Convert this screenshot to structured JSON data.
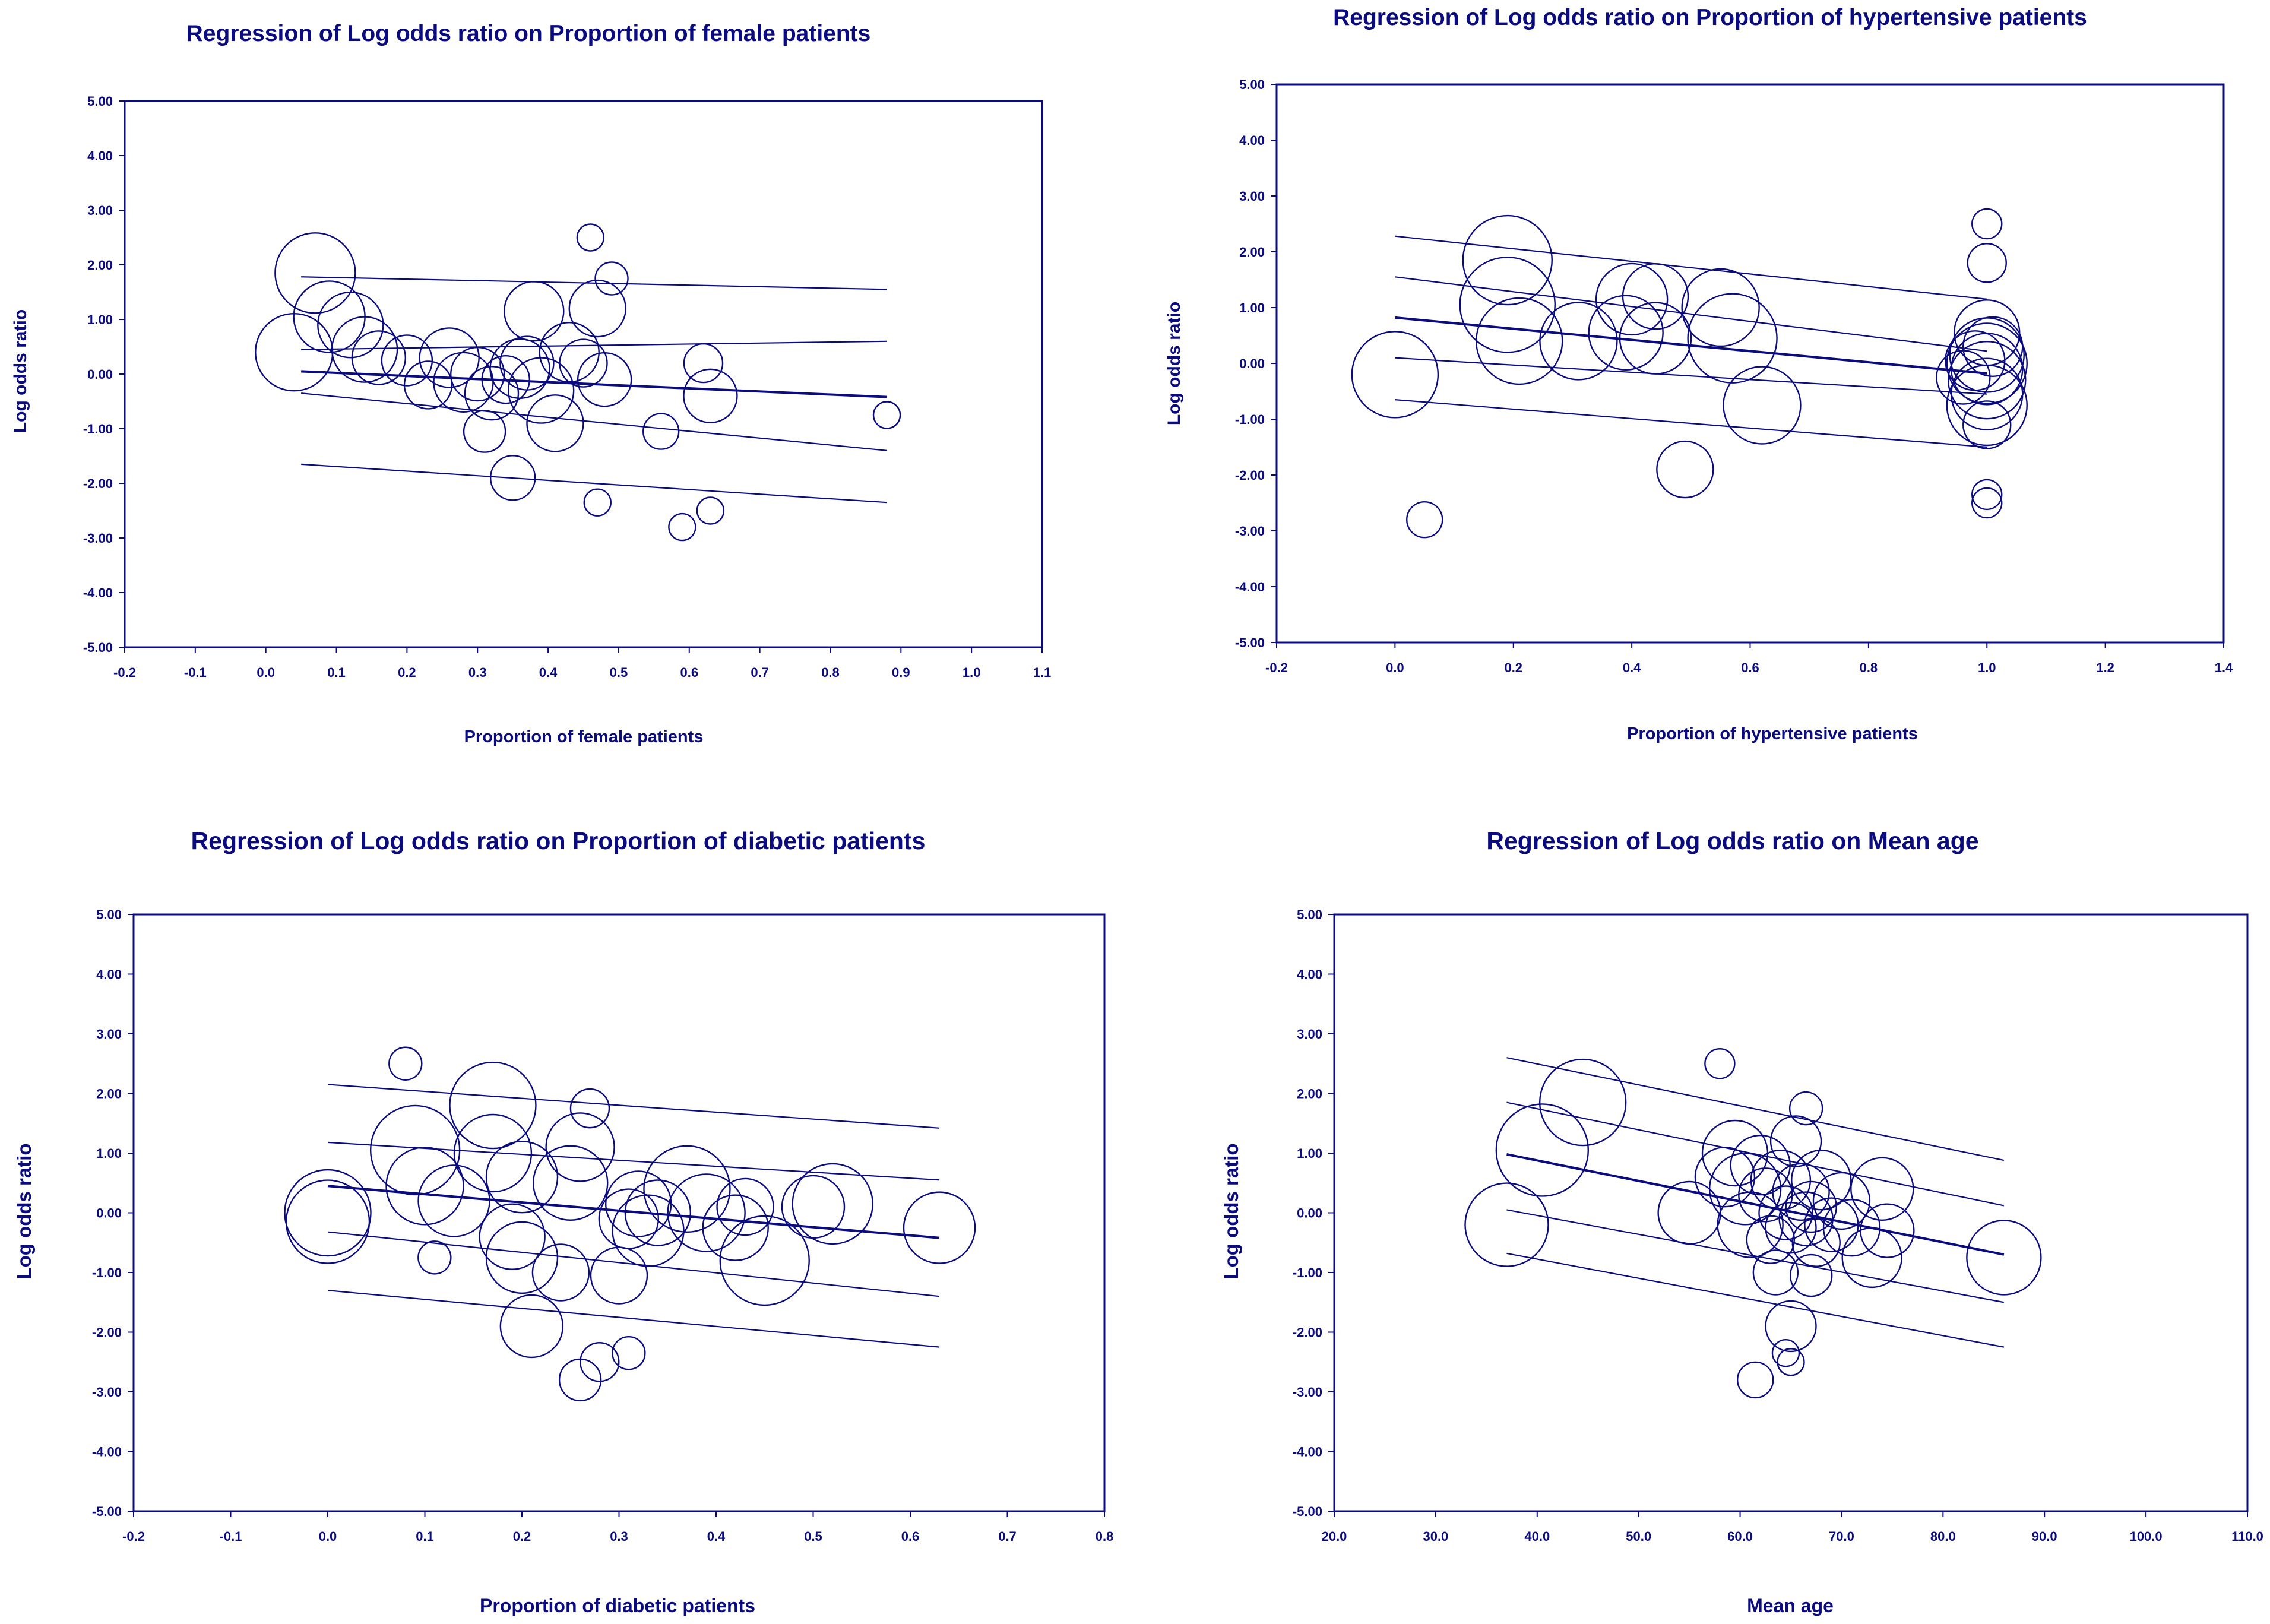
{
  "colors": {
    "ink": "#0b0b80",
    "background": "#ffffff"
  },
  "chart_data": [
    {
      "type": "scatter",
      "title": "Regression of Log odds ratio on Proportion of female patients",
      "xlabel": "Proportion of female patients",
      "ylabel": "Log odds ratio",
      "xlim": [
        -0.2,
        1.1
      ],
      "ylim": [
        -5.0,
        5.0
      ],
      "xticks": [
        -0.2,
        -0.1,
        0.0,
        0.1,
        0.2,
        0.3,
        0.4,
        0.5,
        0.6,
        0.7,
        0.8,
        0.9,
        1.0,
        1.1
      ],
      "xtick_labels": [
        "-0.2",
        "-0.1",
        "0.0",
        "0.1",
        "0.2",
        "0.3",
        "0.4",
        "0.5",
        "0.6",
        "0.7",
        "0.8",
        "0.9",
        "1.0",
        "1.1"
      ],
      "yticks": [
        5,
        4,
        3,
        2,
        1,
        0,
        -1,
        -2,
        -3,
        -4,
        -5
      ],
      "ytick_labels": [
        "5.00",
        "4.00",
        "3.00",
        "2.00",
        "1.00",
        "0.00",
        "-1.00",
        "-2.00",
        "-3.00",
        "-4.00",
        "-5.00"
      ],
      "points": [
        [
          0.07,
          1.85,
          1.35
        ],
        [
          0.04,
          0.4,
          1.3
        ],
        [
          0.09,
          1.05,
          1.2
        ],
        [
          0.12,
          0.9,
          1.1
        ],
        [
          0.14,
          0.45,
          1.1
        ],
        [
          0.16,
          0.3,
          0.9
        ],
        [
          0.2,
          0.25,
          0.85
        ],
        [
          0.23,
          -0.2,
          0.8
        ],
        [
          0.26,
          0.3,
          1.0
        ],
        [
          0.28,
          -0.15,
          1.0
        ],
        [
          0.3,
          0.0,
          0.9
        ],
        [
          0.32,
          -0.35,
          0.9
        ],
        [
          0.34,
          -0.1,
          0.8
        ],
        [
          0.31,
          -1.05,
          0.7
        ],
        [
          0.35,
          -1.9,
          0.75
        ],
        [
          0.36,
          0.1,
          1.0
        ],
        [
          0.37,
          0.2,
          0.9
        ],
        [
          0.38,
          1.15,
          1.0
        ],
        [
          0.39,
          -0.3,
          1.1
        ],
        [
          0.41,
          -0.9,
          0.95
        ],
        [
          0.43,
          0.4,
          1.0
        ],
        [
          0.47,
          1.2,
          0.95
        ],
        [
          0.45,
          0.2,
          0.8
        ],
        [
          0.48,
          -0.1,
          0.9
        ],
        [
          0.49,
          1.75,
          0.55
        ],
        [
          0.46,
          2.5,
          0.45
        ],
        [
          0.47,
          -2.35,
          0.45
        ],
        [
          0.56,
          -1.05,
          0.6
        ],
        [
          0.59,
          -2.8,
          0.45
        ],
        [
          0.63,
          -2.5,
          0.45
        ],
        [
          0.62,
          0.2,
          0.65
        ],
        [
          0.63,
          -0.4,
          0.9
        ],
        [
          0.88,
          -0.75,
          0.45
        ]
      ],
      "regression": {
        "x": [
          0.05,
          0.88
        ],
        "fit": [
          0.05,
          -0.42
        ],
        "ci_upper": [
          0.45,
          0.6
        ],
        "ci_lower": [
          -0.35,
          -1.4
        ],
        "pi_upper": [
          1.78,
          1.55
        ],
        "pi_lower": [
          -1.65,
          -2.35
        ]
      }
    },
    {
      "type": "scatter",
      "title": "Regression of Log odds ratio on Proportion of hypertensive patients",
      "xlabel": "Proportion of hypertensive patients",
      "ylabel": "Log odds ratio",
      "xlim": [
        -0.2,
        1.4
      ],
      "ylim": [
        -5.0,
        5.0
      ],
      "xticks": [
        -0.2,
        0.0,
        0.2,
        0.4,
        0.6,
        0.8,
        1.0,
        1.2,
        1.4
      ],
      "xtick_labels": [
        "-0.2",
        "0.0",
        "0.2",
        "0.4",
        "0.6",
        "0.8",
        "1.0",
        "1.2",
        "1.4"
      ],
      "yticks": [
        5,
        4,
        3,
        2,
        1,
        0,
        -1,
        -2,
        -3,
        -4,
        -5
      ],
      "ytick_labels": [
        "5.00",
        "4.00",
        "3.00",
        "2.00",
        "1.00",
        "0.00",
        "-1.00",
        "-2.00",
        "-3.00",
        "-4.00",
        "-5.00"
      ],
      "points": [
        [
          0.0,
          -0.2,
          1.45
        ],
        [
          0.05,
          -2.8,
          0.6
        ],
        [
          0.19,
          1.85,
          1.5
        ],
        [
          0.19,
          1.05,
          1.6
        ],
        [
          0.21,
          0.4,
          1.45
        ],
        [
          0.31,
          0.4,
          1.3
        ],
        [
          0.4,
          1.15,
          1.2
        ],
        [
          0.39,
          0.55,
          1.25
        ],
        [
          0.44,
          1.2,
          1.1
        ],
        [
          0.44,
          0.45,
          1.2
        ],
        [
          0.55,
          1.0,
          1.3
        ],
        [
          0.57,
          0.45,
          1.5
        ],
        [
          0.49,
          -1.9,
          0.95
        ],
        [
          0.62,
          -0.75,
          1.3
        ],
        [
          0.96,
          -0.25,
          0.9
        ],
        [
          0.98,
          0.05,
          1.0
        ],
        [
          1.0,
          0.55,
          1.1
        ],
        [
          1.0,
          0.15,
          1.25
        ],
        [
          1.0,
          0.0,
          1.35
        ],
        [
          1.0,
          -0.1,
          1.2
        ],
        [
          1.0,
          -0.3,
          1.3
        ],
        [
          1.0,
          -0.55,
          1.2
        ],
        [
          1.0,
          -0.75,
          1.35
        ],
        [
          1.01,
          0.3,
          1.0
        ],
        [
          1.0,
          -1.1,
          0.8
        ],
        [
          1.0,
          1.8,
          0.65
        ],
        [
          1.0,
          2.5,
          0.5
        ],
        [
          1.0,
          -2.35,
          0.5
        ],
        [
          1.0,
          -2.5,
          0.5
        ]
      ],
      "regression": {
        "x": [
          0.0,
          1.0
        ],
        "fit": [
          0.82,
          -0.18
        ],
        "ci_upper": [
          1.55,
          0.22
        ],
        "ci_lower": [
          0.1,
          -0.55
        ],
        "pi_upper": [
          2.28,
          1.15
        ],
        "pi_lower": [
          -0.65,
          -1.5
        ]
      }
    },
    {
      "type": "scatter",
      "title": "Regression of Log odds ratio on Proportion of diabetic patients",
      "xlabel": "Proportion of diabetic patients",
      "ylabel": "Log odds ratio",
      "xlim": [
        -0.2,
        0.8
      ],
      "ylim": [
        -5.0,
        5.0
      ],
      "xticks": [
        -0.2,
        -0.1,
        0.0,
        0.1,
        0.2,
        0.3,
        0.4,
        0.5,
        0.6,
        0.7,
        0.8
      ],
      "xtick_labels": [
        "-0.2",
        "-0.1",
        "0.0",
        "0.1",
        "0.2",
        "0.3",
        "0.4",
        "0.5",
        "0.6",
        "0.7",
        "0.8"
      ],
      "yticks": [
        5,
        4,
        3,
        2,
        1,
        0,
        -1,
        -2,
        -3,
        -4,
        -5
      ],
      "ytick_labels": [
        "5.00",
        "4.00",
        "3.00",
        "2.00",
        "1.00",
        "0.00",
        "-1.00",
        "-2.00",
        "-3.00",
        "-4.00",
        "-5.00"
      ],
      "points": [
        [
          0.0,
          0.0,
          1.45
        ],
        [
          0.0,
          -0.15,
          1.4
        ],
        [
          0.08,
          2.5,
          0.55
        ],
        [
          0.09,
          1.05,
          1.5
        ],
        [
          0.1,
          0.45,
          1.3
        ],
        [
          0.13,
          0.2,
          1.2
        ],
        [
          0.17,
          1.8,
          1.45
        ],
        [
          0.17,
          1.0,
          1.3
        ],
        [
          0.2,
          0.6,
          1.2
        ],
        [
          0.19,
          -0.4,
          1.1
        ],
        [
          0.2,
          -0.75,
          1.2
        ],
        [
          0.21,
          -1.9,
          1.05
        ],
        [
          0.11,
          -0.75,
          0.55
        ],
        [
          0.25,
          0.5,
          1.25
        ],
        [
          0.26,
          1.1,
          1.15
        ],
        [
          0.27,
          1.75,
          0.65
        ],
        [
          0.24,
          -1.0,
          0.95
        ],
        [
          0.26,
          -2.8,
          0.7
        ],
        [
          0.28,
          -2.5,
          0.65
        ],
        [
          0.31,
          -2.35,
          0.55
        ],
        [
          0.3,
          -1.05,
          0.95
        ],
        [
          0.31,
          -0.1,
          1.0
        ],
        [
          0.32,
          0.15,
          1.1
        ],
        [
          0.33,
          -0.3,
          1.2
        ],
        [
          0.34,
          0.0,
          1.1
        ],
        [
          0.37,
          0.4,
          1.45
        ],
        [
          0.39,
          0.0,
          1.3
        ],
        [
          0.42,
          -0.25,
          1.1
        ],
        [
          0.43,
          0.1,
          0.95
        ],
        [
          0.45,
          -0.8,
          1.5
        ],
        [
          0.5,
          0.1,
          1.05
        ],
        [
          0.52,
          0.15,
          1.35
        ],
        [
          0.63,
          -0.25,
          1.2
        ]
      ],
      "regression": {
        "x": [
          0.0,
          0.63
        ],
        "fit": [
          0.45,
          -0.42
        ],
        "ci_upper": [
          1.18,
          0.55
        ],
        "ci_lower": [
          -0.32,
          -1.4
        ],
        "pi_upper": [
          2.15,
          1.42
        ],
        "pi_lower": [
          -1.3,
          -2.25
        ]
      }
    },
    {
      "type": "scatter",
      "title": "Regression of Log odds ratio on Mean age",
      "xlabel": "Mean age",
      "ylabel": "Log odds ratio",
      "xlim": [
        20.0,
        110.0
      ],
      "ylim": [
        -5.0,
        5.0
      ],
      "xticks": [
        20,
        30,
        40,
        50,
        60,
        70,
        80,
        90,
        100,
        110
      ],
      "xtick_labels": [
        "20.0",
        "30.0",
        "40.0",
        "50.0",
        "60.0",
        "70.0",
        "80.0",
        "90.0",
        "100.0",
        "110.0"
      ],
      "yticks": [
        5,
        4,
        3,
        2,
        1,
        0,
        -1,
        -2,
        -3,
        -4,
        -5
      ],
      "ytick_labels": [
        "5.00",
        "4.00",
        "3.00",
        "2.00",
        "1.00",
        "0.00",
        "-1.00",
        "-2.00",
        "-3.00",
        "-4.00",
        "-5.00"
      ],
      "points": [
        [
          37.0,
          -0.2,
          1.4
        ],
        [
          40.5,
          1.05,
          1.55
        ],
        [
          44.5,
          1.85,
          1.45
        ],
        [
          55.0,
          0.0,
          1.05
        ],
        [
          58.0,
          2.5,
          0.5
        ],
        [
          58.5,
          0.6,
          1.0
        ],
        [
          59.5,
          1.0,
          1.1
        ],
        [
          60.5,
          0.4,
          1.2
        ],
        [
          61.0,
          -0.2,
          1.1
        ],
        [
          62.0,
          0.8,
          1.0
        ],
        [
          62.5,
          0.3,
          0.9
        ],
        [
          63.0,
          -0.45,
          0.8
        ],
        [
          63.5,
          -1.0,
          0.75
        ],
        [
          64.0,
          0.55,
          1.0
        ],
        [
          64.5,
          0.0,
          0.9
        ],
        [
          65.0,
          -0.25,
          0.85
        ],
        [
          65.5,
          1.2,
          0.85
        ],
        [
          66.0,
          0.35,
          0.95
        ],
        [
          66.5,
          -0.1,
          0.9
        ],
        [
          66.5,
          1.75,
          0.55
        ],
        [
          67.0,
          0.1,
          0.85
        ],
        [
          67.5,
          -0.5,
          0.8
        ],
        [
          67.0,
          -1.05,
          0.7
        ],
        [
          68.0,
          0.55,
          1.0
        ],
        [
          69.0,
          -0.2,
          0.9
        ],
        [
          70.0,
          0.2,
          0.95
        ],
        [
          71.0,
          -0.25,
          0.95
        ],
        [
          73.0,
          -0.75,
          1.0
        ],
        [
          74.0,
          0.4,
          1.05
        ],
        [
          74.5,
          -0.3,
          0.9
        ],
        [
          65.0,
          -1.9,
          0.85
        ],
        [
          64.5,
          -2.35,
          0.45
        ],
        [
          65.0,
          -2.5,
          0.45
        ],
        [
          61.5,
          -2.8,
          0.6
        ],
        [
          86.0,
          -0.75,
          1.25
        ]
      ],
      "regression": {
        "x": [
          37.0,
          86.0
        ],
        "fit": [
          0.98,
          -0.7
        ],
        "ci_upper": [
          1.85,
          0.12
        ],
        "ci_lower": [
          0.05,
          -1.5
        ],
        "pi_upper": [
          2.6,
          0.88
        ],
        "pi_lower": [
          -0.68,
          -2.25
        ]
      }
    }
  ]
}
